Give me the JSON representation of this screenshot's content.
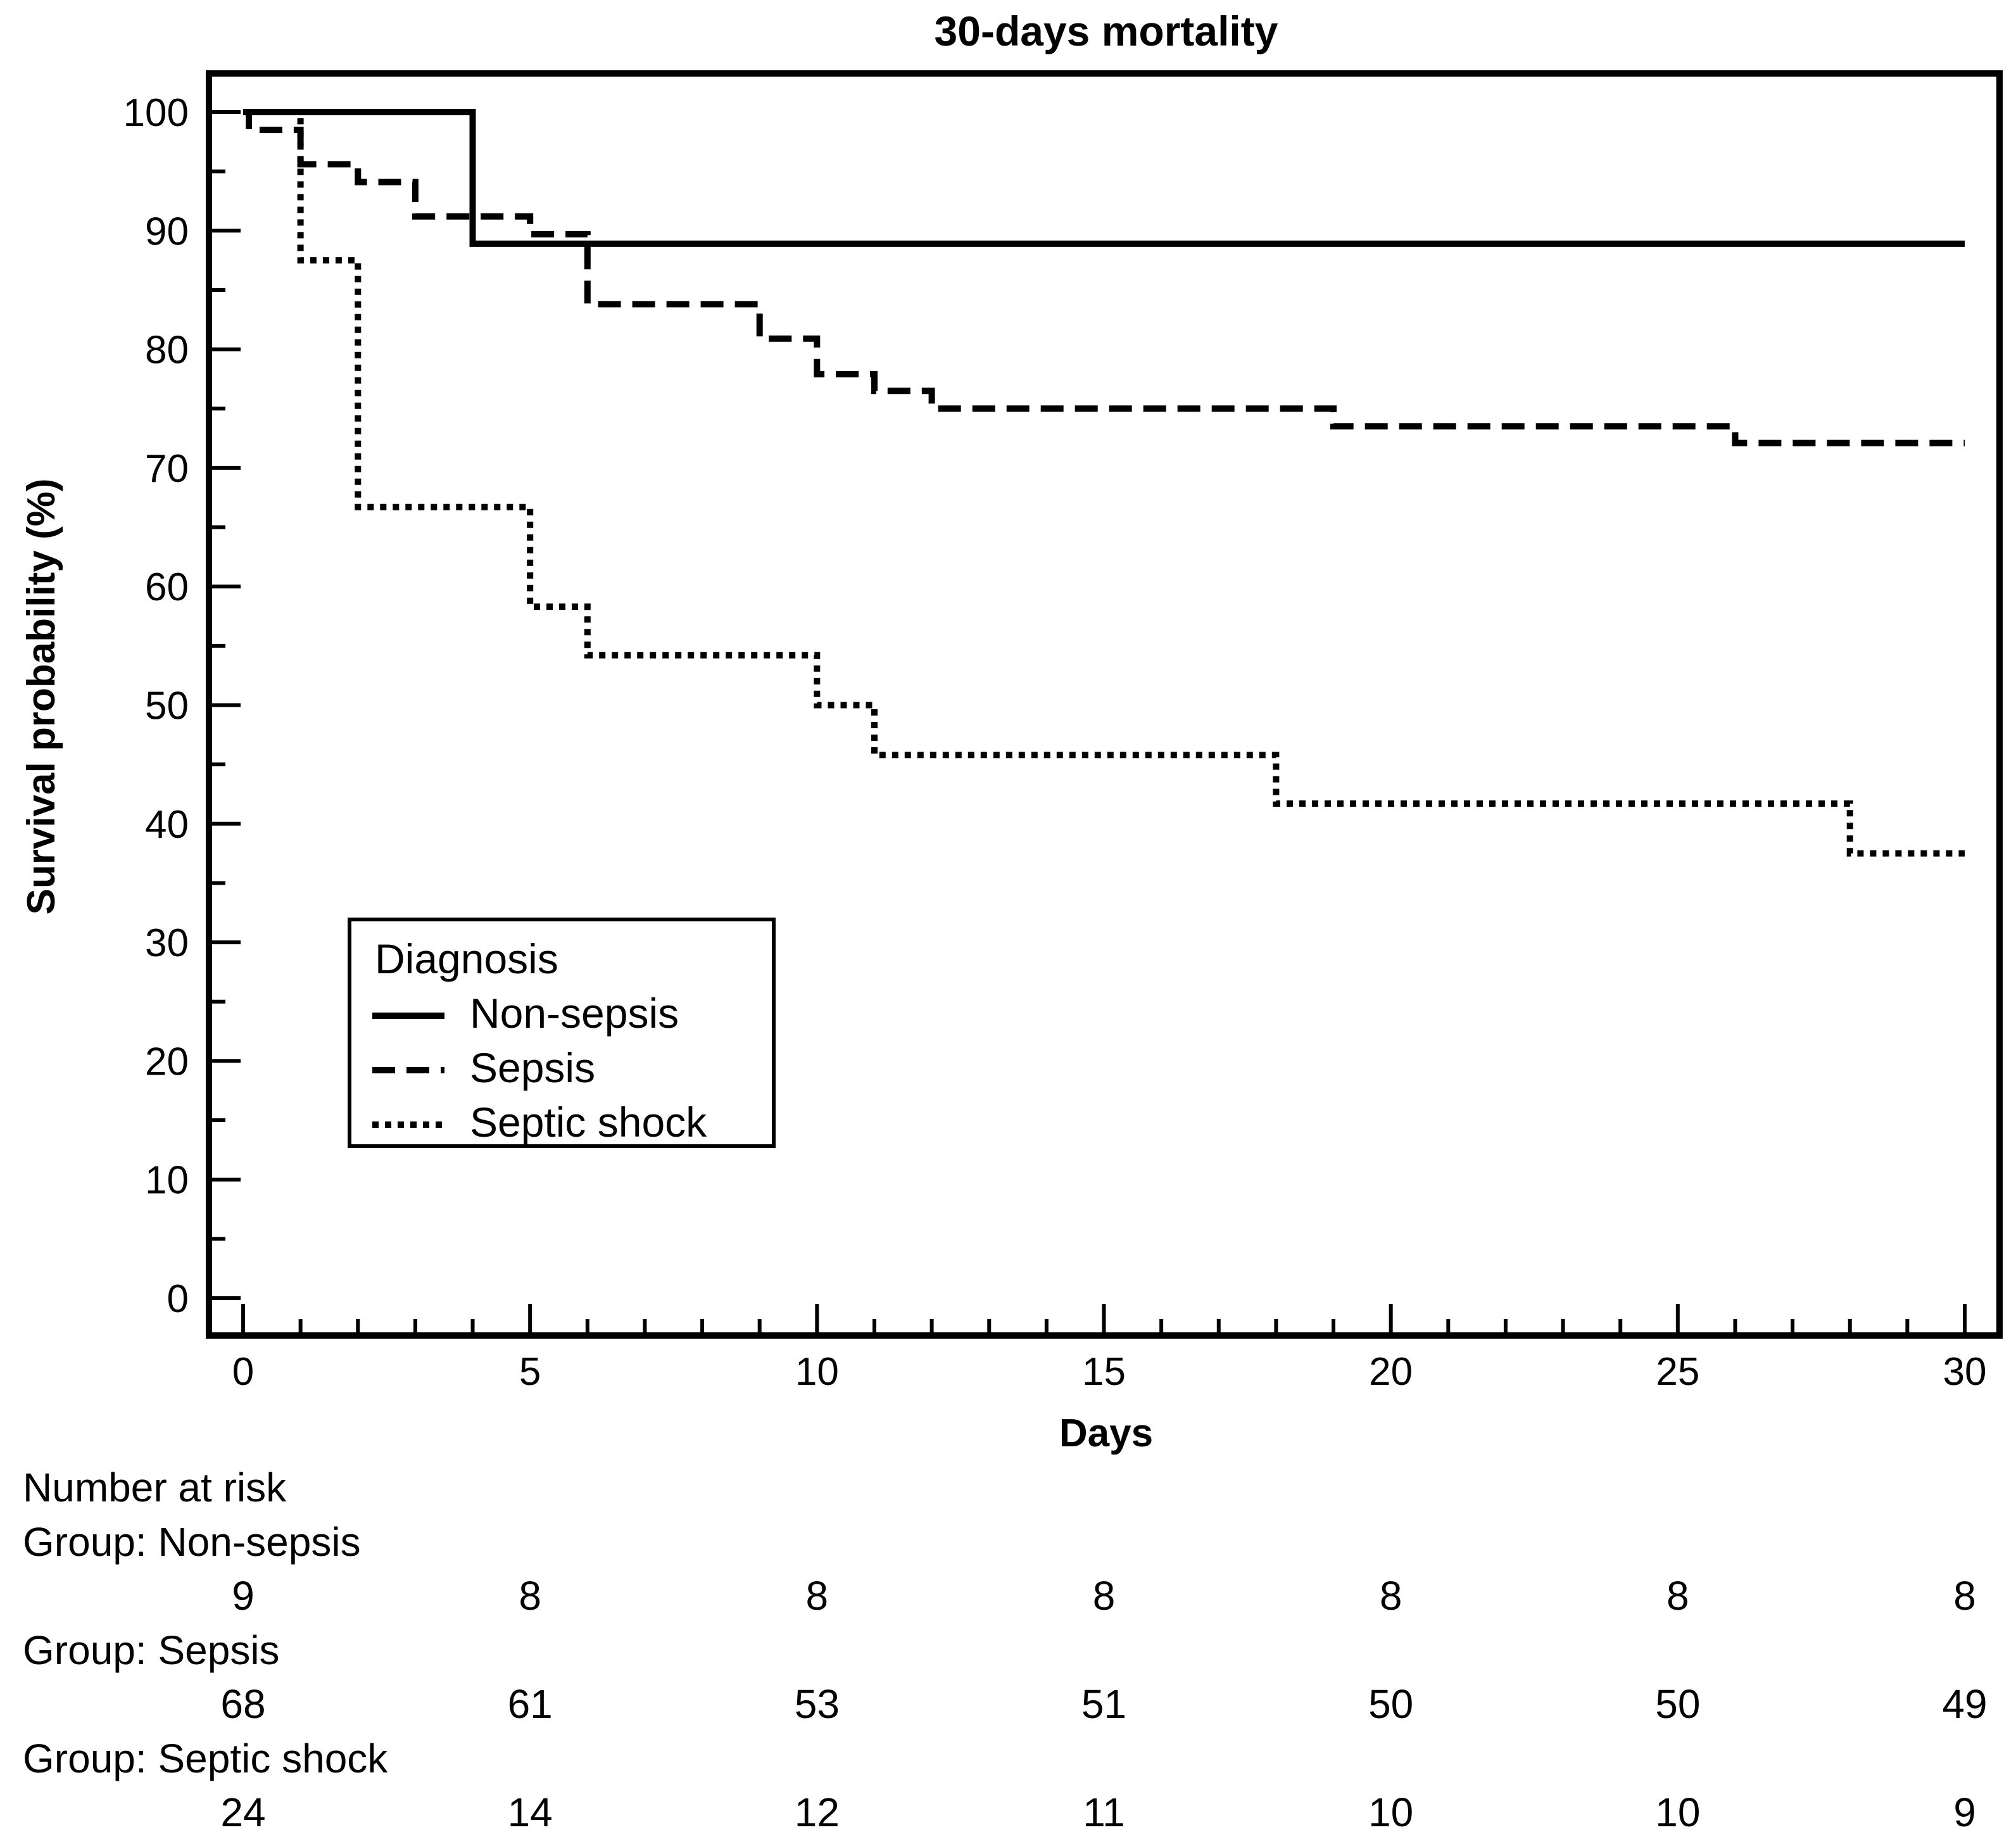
{
  "chart_data": {
    "type": "line",
    "title": "30-days mortality",
    "xlabel": "Days",
    "ylabel": "Survival probability (%)",
    "xlim": [
      0,
      30
    ],
    "ylim": [
      0,
      100
    ],
    "x_ticks": [
      0,
      5,
      10,
      15,
      20,
      25,
      30
    ],
    "y_ticks": [
      0,
      10,
      20,
      30,
      40,
      50,
      60,
      70,
      80,
      90,
      100
    ],
    "grid": false,
    "legend": {
      "title": "Diagnosis",
      "position": "lower-left",
      "entries": [
        "Non-sepsis",
        "Sepsis",
        "Septic shock"
      ]
    },
    "series": [
      {
        "name": "Non-sepsis",
        "line_style": "solid",
        "step_points": [
          [
            0,
            100
          ],
          [
            4,
            100
          ],
          [
            4,
            88.9
          ],
          [
            30,
            88.9
          ]
        ]
      },
      {
        "name": "Sepsis",
        "line_style": "dashed",
        "step_points": [
          [
            0,
            100
          ],
          [
            0.1,
            100
          ],
          [
            0.1,
            98.5
          ],
          [
            1,
            98.5
          ],
          [
            1,
            95.6
          ],
          [
            2,
            95.6
          ],
          [
            2,
            94.1
          ],
          [
            3,
            94.1
          ],
          [
            3,
            91.2
          ],
          [
            5,
            91.2
          ],
          [
            5,
            89.7
          ],
          [
            6,
            89.7
          ],
          [
            6,
            83.8
          ],
          [
            9,
            83.8
          ],
          [
            9,
            80.9
          ],
          [
            10,
            80.9
          ],
          [
            10,
            77.9
          ],
          [
            11,
            77.9
          ],
          [
            11,
            76.5
          ],
          [
            12,
            76.5
          ],
          [
            12,
            75
          ],
          [
            19,
            75
          ],
          [
            19,
            73.5
          ],
          [
            26,
            73.5
          ],
          [
            26,
            72.1
          ],
          [
            30,
            72.1
          ]
        ]
      },
      {
        "name": "Septic shock",
        "line_style": "dotted",
        "step_points": [
          [
            0,
            100
          ],
          [
            1,
            100
          ],
          [
            1,
            87.5
          ],
          [
            2,
            87.5
          ],
          [
            2,
            66.7
          ],
          [
            5,
            66.7
          ],
          [
            5,
            58.3
          ],
          [
            6,
            58.3
          ],
          [
            6,
            54.2
          ],
          [
            10,
            54.2
          ],
          [
            10,
            50
          ],
          [
            11,
            50
          ],
          [
            11,
            45.8
          ],
          [
            18,
            45.8
          ],
          [
            18,
            41.7
          ],
          [
            28,
            41.7
          ],
          [
            28,
            37.5
          ],
          [
            30,
            37.5
          ]
        ]
      }
    ],
    "risk_table": {
      "title": "Number at risk",
      "times": [
        0,
        5,
        10,
        15,
        20,
        25,
        30
      ],
      "groups": [
        {
          "label": "Group: Non-sepsis",
          "values": [
            "9",
            "8",
            "8",
            "8",
            "8",
            "8",
            "8"
          ]
        },
        {
          "label": "Group: Sepsis",
          "values": [
            "68",
            "61",
            "53",
            "51",
            "50",
            "50",
            "49"
          ]
        },
        {
          "label": "Group: Septic shock",
          "values": [
            "24",
            "14",
            "12",
            "11",
            "10",
            "10",
            "9"
          ]
        }
      ]
    }
  }
}
